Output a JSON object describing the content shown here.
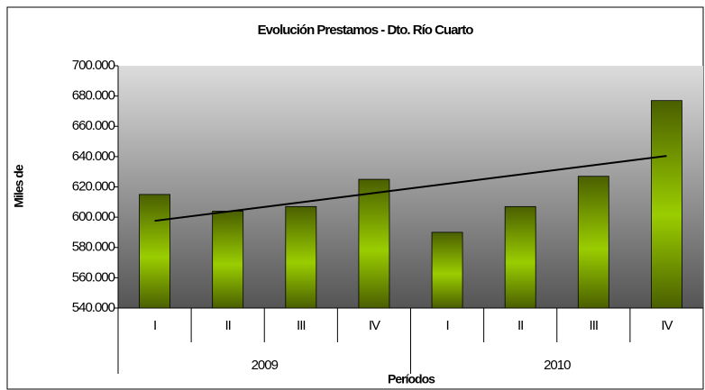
{
  "chart_data": {
    "type": "bar",
    "title": "Evolución Prestamos - Dto. Río Cuarto",
    "y_label": "Miles de",
    "x_label": "Períodos",
    "categories": [
      "I",
      "II",
      "III",
      "IV",
      "I",
      "II",
      "III",
      "IV"
    ],
    "groups": [
      "2009",
      "2010"
    ],
    "values": [
      615000,
      604000,
      607000,
      625000,
      590000,
      607000,
      627000,
      677000
    ],
    "ylim": [
      540000,
      700000
    ],
    "yticks": [
      {
        "value": 540000,
        "label": "540.000"
      },
      {
        "value": 560000,
        "label": "560.000"
      },
      {
        "value": 580000,
        "label": "580.000"
      },
      {
        "value": 600000,
        "label": "600.000"
      },
      {
        "value": 620000,
        "label": "620.000"
      },
      {
        "value": 640000,
        "label": "640.000"
      },
      {
        "value": 660000,
        "label": "660.000"
      },
      {
        "value": 680000,
        "label": "680.000"
      },
      {
        "value": 700000,
        "label": "700.000"
      }
    ],
    "trendline": "linear",
    "color": "#99cc00"
  }
}
